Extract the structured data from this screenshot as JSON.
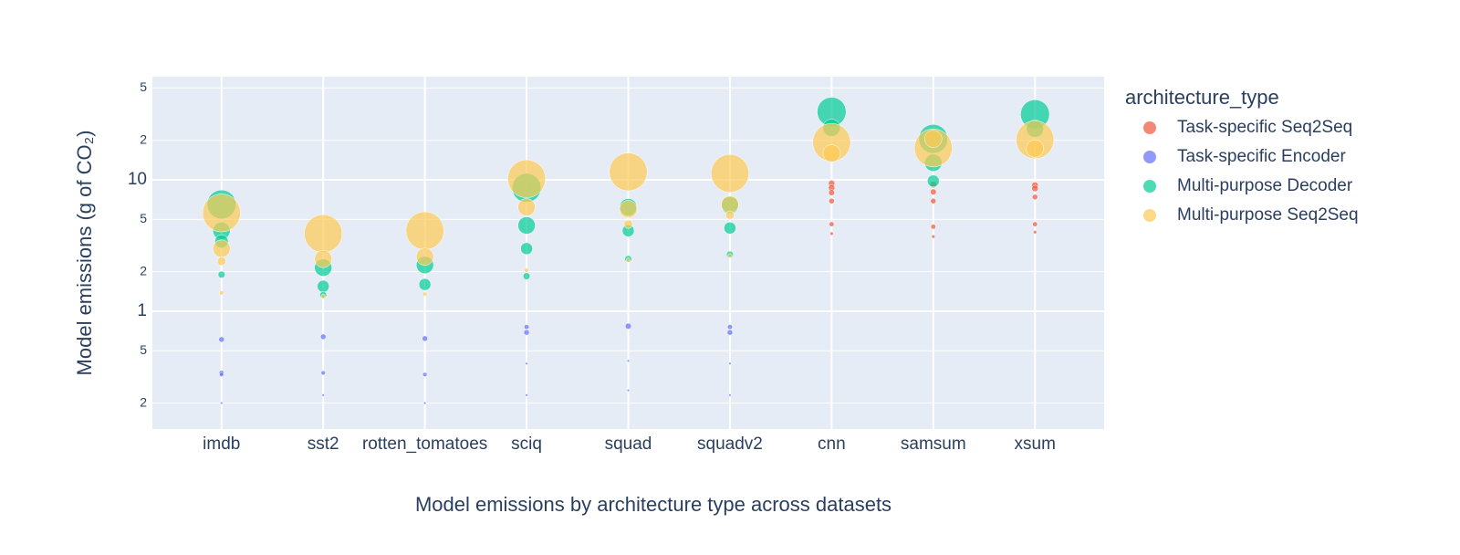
{
  "chart_data": {
    "type": "bubble",
    "title": "Model emissions by architecture type across datasets",
    "y_label": "Model emissions (g of CO₂)",
    "legend_title": "architecture_type",
    "legend_position": "right",
    "grid": true,
    "log_y": true,
    "categories": [
      "imdb",
      "sst2",
      "rotten_tomatoes",
      "sciq",
      "squad",
      "squadv2",
      "cnn",
      "samsum",
      "xsum"
    ],
    "ylim": [
      0.127,
      61
    ],
    "yticks": [
      {
        "value": 0.2,
        "label": "2"
      },
      {
        "value": 0.5,
        "label": "5"
      },
      1,
      {
        "value": 2,
        "label": "2"
      },
      {
        "value": 5,
        "label": "5"
      },
      10,
      {
        "value": 20,
        "label": "2"
      },
      {
        "value": 50,
        "label": "5"
      }
    ],
    "series": [
      {
        "name": "Task-specific Seq2Seq",
        "color": "#EF553B",
        "x": [
          "cnn",
          "cnn",
          "cnn",
          "cnn",
          "cnn",
          "cnn",
          "samsum",
          "samsum",
          "samsum",
          "samsum",
          "samsum",
          "xsum",
          "xsum",
          "xsum",
          "xsum",
          "xsum"
        ],
        "values": [
          9.4,
          8.7,
          8.0,
          6.9,
          4.6,
          3.9,
          9.2,
          8.1,
          6.9,
          4.4,
          3.7,
          9.1,
          8.6,
          7.4,
          4.6,
          4.0
        ],
        "sizes": [
          0.35,
          0.35,
          0.3,
          0.25,
          0.2,
          0.1,
          0.35,
          0.3,
          0.25,
          0.2,
          0.1,
          0.35,
          0.35,
          0.25,
          0.2,
          0.1
        ]
      },
      {
        "name": "Task-specific Encoder",
        "color": "#636EFA",
        "x": [
          "imdb",
          "imdb",
          "imdb",
          "imdb",
          "sst2",
          "sst2",
          "sst2",
          "rotten_tomatoes",
          "rotten_tomatoes",
          "rotten_tomatoes",
          "sciq",
          "sciq",
          "sciq",
          "sciq",
          "squad",
          "squad",
          "squad",
          "squadv2",
          "squadv2",
          "squadv2",
          "squadv2"
        ],
        "values": [
          0.61,
          0.34,
          0.33,
          0.2,
          0.64,
          0.34,
          0.23,
          0.62,
          0.33,
          0.2,
          0.76,
          0.69,
          0.4,
          0.23,
          0.77,
          0.42,
          0.25,
          0.76,
          0.69,
          0.4,
          0.23
        ],
        "sizes": [
          0.25,
          0.2,
          0.15,
          0.05,
          0.25,
          0.15,
          0.05,
          0.25,
          0.15,
          0.05,
          0.2,
          0.25,
          0.05,
          0.05,
          0.3,
          0.05,
          0.05,
          0.2,
          0.25,
          0.05,
          0.05
        ]
      },
      {
        "name": "Multi-purpose Decoder",
        "color": "#00CC96",
        "x": [
          "imdb",
          "imdb",
          "imdb",
          "imdb",
          "sst2",
          "sst2",
          "sst2",
          "rotten_tomatoes",
          "rotten_tomatoes",
          "sciq",
          "sciq",
          "sciq",
          "sciq",
          "squad",
          "squad",
          "squad",
          "squadv2",
          "squadv2",
          "squadv2",
          "cnn",
          "cnn",
          "samsum",
          "samsum",
          "samsum",
          "xsum",
          "xsum"
        ],
        "values": [
          6.5,
          4.1,
          3.4,
          1.9,
          2.15,
          1.55,
          1.33,
          2.25,
          1.6,
          8.7,
          4.5,
          3.0,
          1.85,
          6.2,
          4.1,
          2.5,
          6.4,
          4.3,
          2.7,
          33,
          24.9,
          20.5,
          13.5,
          9.8,
          31.6,
          24.5
        ],
        "sizes": [
          7,
          2.5,
          1.5,
          0.4,
          2.5,
          1.2,
          0.4,
          2.5,
          1.2,
          7,
          2.5,
          1.2,
          0.4,
          2.5,
          1.2,
          0.4,
          2.5,
          1.2,
          0.4,
          7,
          2.5,
          7,
          2.5,
          1.2,
          7,
          2.5
        ]
      },
      {
        "name": "Multi-purpose Seq2Seq",
        "color": "#FECB52",
        "x": [
          "imdb",
          "imdb",
          "imdb",
          "imdb",
          "sst2",
          "sst2",
          "sst2",
          "rotten_tomatoes",
          "rotten_tomatoes",
          "rotten_tomatoes",
          "sciq",
          "sciq",
          "sciq",
          "squad",
          "squad",
          "squad",
          "squad",
          "squadv2",
          "squadv2",
          "squadv2",
          "squadv2",
          "cnn",
          "cnn",
          "samsum",
          "samsum",
          "xsum",
          "xsum"
        ],
        "values": [
          5.6,
          3.0,
          2.4,
          1.38,
          3.9,
          2.5,
          1.3,
          4.1,
          2.6,
          1.35,
          10.2,
          6.2,
          2.05,
          11.5,
          6.0,
          4.6,
          2.45,
          11.2,
          6.5,
          5.4,
          2.65,
          19.3,
          15.9,
          17.5,
          20.5,
          20.2,
          17.3
        ],
        "sizes": [
          12,
          2.5,
          0.6,
          0.15,
          12,
          2.5,
          0.15,
          12,
          2.5,
          0.15,
          12,
          2.5,
          0.15,
          12,
          2.5,
          0.6,
          0.15,
          12,
          2.5,
          0.6,
          0.15,
          12,
          2.5,
          12,
          2.5,
          12,
          2.5
        ]
      }
    ]
  }
}
